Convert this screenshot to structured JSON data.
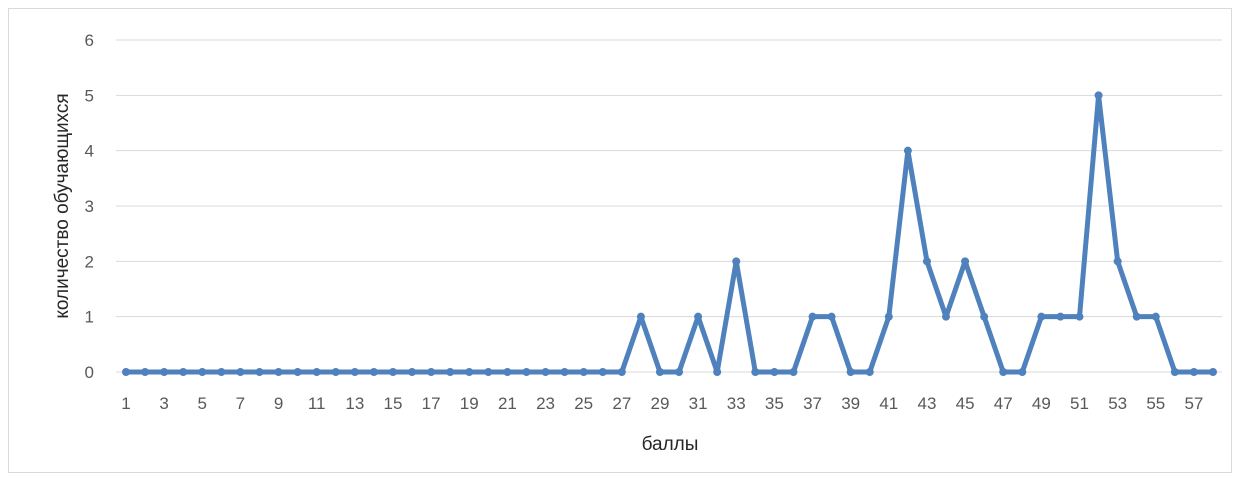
{
  "chart_data": {
    "type": "line",
    "title": "",
    "xlabel": "баллы",
    "ylabel": "количество обучающихся",
    "ylim": [
      0,
      6
    ],
    "yticks": [
      0,
      1,
      2,
      3,
      4,
      5,
      6
    ],
    "x": [
      1,
      2,
      3,
      4,
      5,
      6,
      7,
      8,
      9,
      10,
      11,
      12,
      13,
      14,
      15,
      16,
      17,
      18,
      19,
      20,
      21,
      22,
      23,
      24,
      25,
      26,
      27,
      28,
      29,
      30,
      31,
      32,
      33,
      34,
      35,
      36,
      37,
      38,
      39,
      40,
      41,
      42,
      43,
      44,
      45,
      46,
      47,
      48,
      49,
      50,
      51,
      52,
      53,
      54,
      55,
      56,
      57,
      58
    ],
    "xtick_labels": [
      "1",
      "3",
      "5",
      "7",
      "9",
      "11",
      "13",
      "15",
      "17",
      "19",
      "21",
      "23",
      "25",
      "27",
      "29",
      "31",
      "33",
      "35",
      "37",
      "39",
      "41",
      "43",
      "45",
      "47",
      "49",
      "51",
      "53",
      "55",
      "57"
    ],
    "series": [
      {
        "values": [
          0,
          0,
          0,
          0,
          0,
          0,
          0,
          0,
          0,
          0,
          0,
          0,
          0,
          0,
          0,
          0,
          0,
          0,
          0,
          0,
          0,
          0,
          0,
          0,
          0,
          0,
          0,
          1,
          0,
          0,
          1,
          0,
          2,
          0,
          0,
          0,
          1,
          1,
          0,
          0,
          1,
          4,
          2,
          1,
          2,
          1,
          0,
          0,
          1,
          1,
          1,
          5,
          2,
          1,
          1,
          0,
          0,
          0
        ],
        "color": "#4f81bd"
      }
    ],
    "grid": true,
    "legend": "none"
  }
}
